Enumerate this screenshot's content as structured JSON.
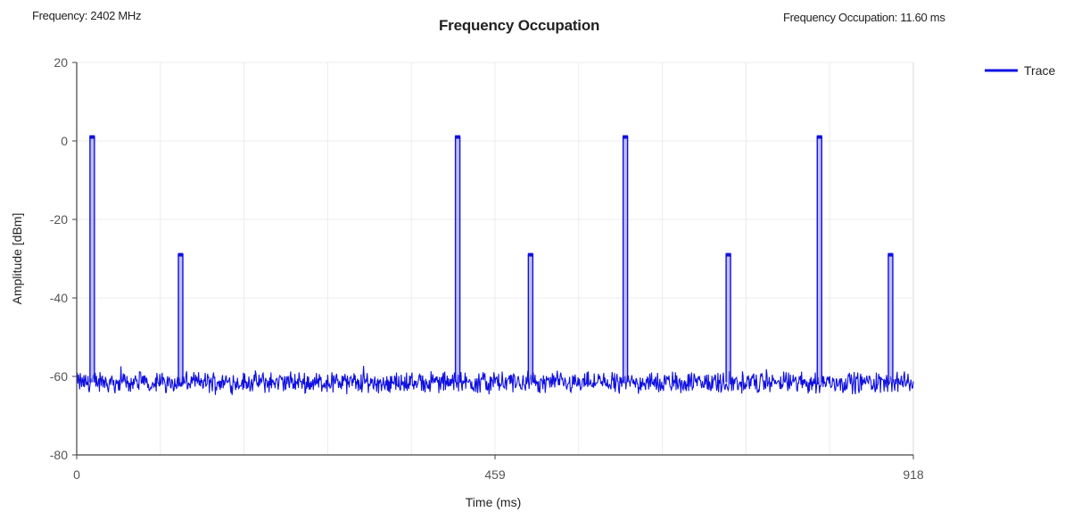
{
  "header": {
    "frequency_text": "Frequency: 2402 MHz",
    "occupation_text": "Frequency Occupation: 11.60 ms"
  },
  "chart_data": {
    "type": "line",
    "title": "Frequency Occupation",
    "xlabel": "Time (ms)",
    "ylabel": "Amplitude [dBm]",
    "xlim": [
      0,
      918
    ],
    "ylim": [
      -80,
      20
    ],
    "x_ticks": [
      "0",
      "459",
      "918"
    ],
    "y_ticks": [
      "20",
      "0",
      "-20",
      "-40",
      "-60",
      "-80"
    ],
    "grid": true,
    "legend_position": "top-right",
    "series": [
      {
        "name": "Trace",
        "color": "#1010e0",
        "noise_floor_dbm": -61.5,
        "pulses": [
          {
            "t": 17,
            "peak": 1
          },
          {
            "t": 114,
            "peak": -29
          },
          {
            "t": 418,
            "peak": 1
          },
          {
            "t": 498,
            "peak": -29
          },
          {
            "t": 602,
            "peak": 1
          },
          {
            "t": 715,
            "peak": -29
          },
          {
            "t": 815,
            "peak": 1
          },
          {
            "t": 893,
            "peak": -29
          }
        ]
      }
    ]
  }
}
